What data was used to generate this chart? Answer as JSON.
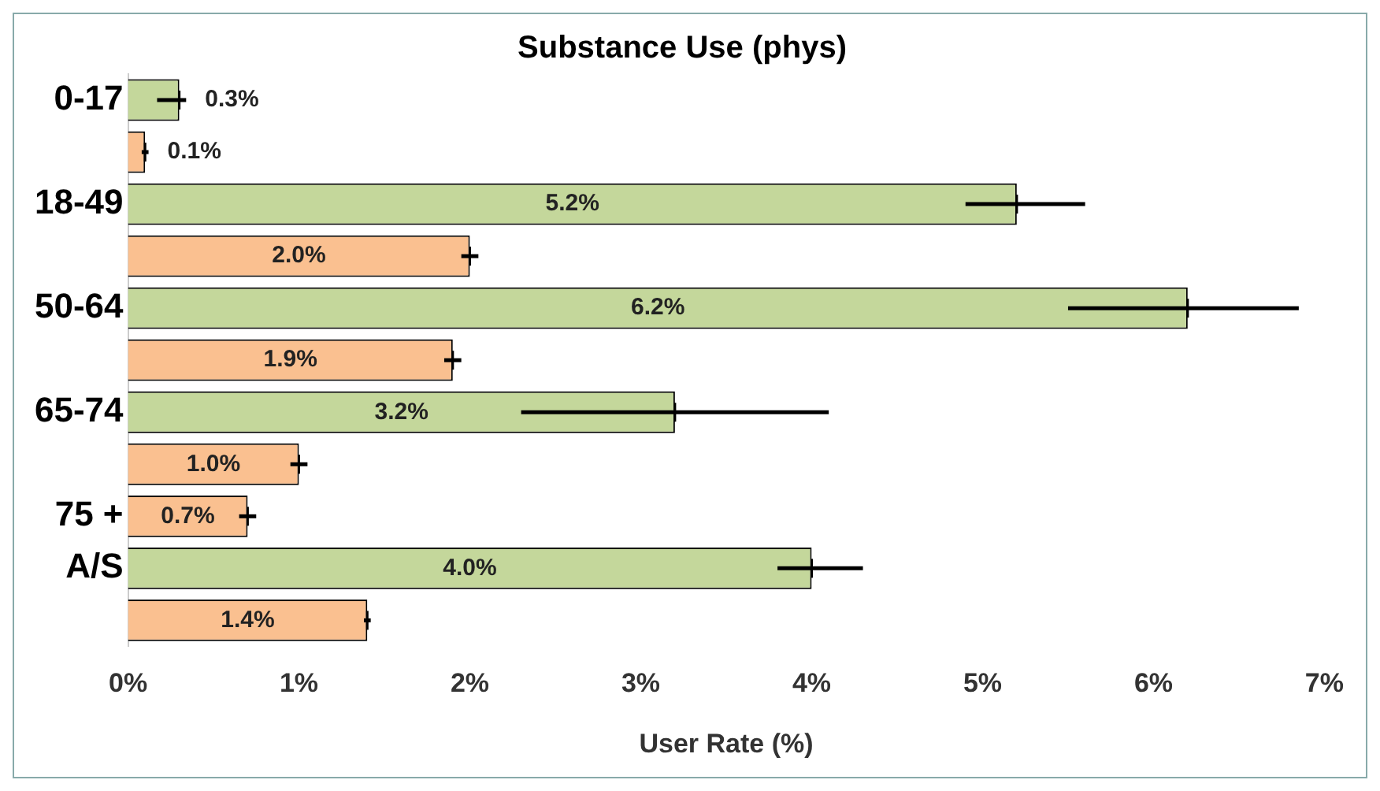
{
  "chart_data": {
    "type": "bar",
    "orientation": "horizontal",
    "title": "Substance Use (phys)",
    "xlabel": "User Rate (%)",
    "categories": [
      "0-17",
      null,
      "18-49",
      null,
      "50-64",
      null,
      "65-74",
      null,
      "75 +",
      "A/S",
      null
    ],
    "values": [
      0.3,
      0.1,
      5.2,
      2.0,
      6.2,
      1.9,
      3.2,
      1.0,
      0.7,
      4.0,
      1.4
    ],
    "colors": [
      "#c4d79b",
      "#fac090",
      "#c4d79b",
      "#fac090",
      "#c4d79b",
      "#fac090",
      "#c4d79b",
      "#fac090",
      "#fac090",
      "#c4d79b",
      "#fac090"
    ],
    "value_labels": [
      "0.3%",
      "0.1%",
      "5.2%",
      "2.0%",
      "6.2%",
      "1.9%",
      "3.2%",
      "1.0%",
      "0.7%",
      "4.0%",
      "1.4%"
    ],
    "errors": [
      [
        0.17,
        0.34
      ],
      [
        0.08,
        0.12
      ],
      [
        4.9,
        5.6
      ],
      [
        1.95,
        2.05
      ],
      [
        5.5,
        6.85
      ],
      [
        1.85,
        1.95
      ],
      [
        2.3,
        4.1
      ],
      [
        0.95,
        1.05
      ],
      [
        0.65,
        0.75
      ],
      [
        3.8,
        4.3
      ],
      [
        1.38,
        1.42
      ]
    ],
    "xlim": [
      0,
      7
    ],
    "xticks": [
      {
        "value": 0,
        "label": "0%"
      },
      {
        "value": 1,
        "label": "1%"
      },
      {
        "value": 2,
        "label": "2%"
      },
      {
        "value": 3,
        "label": "3%"
      },
      {
        "value": 4,
        "label": "4%"
      },
      {
        "value": 5,
        "label": "5%"
      },
      {
        "value": 6,
        "label": "6%"
      },
      {
        "value": 7,
        "label": "7%"
      }
    ],
    "grid": false,
    "legend": false
  }
}
